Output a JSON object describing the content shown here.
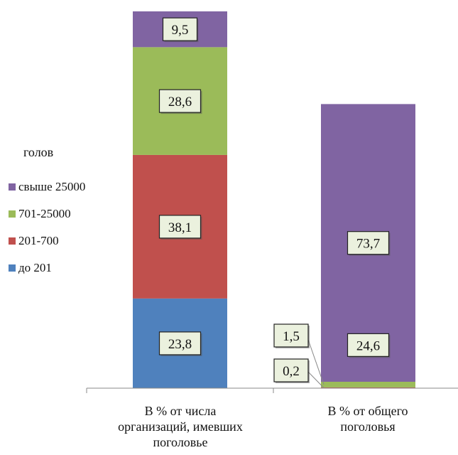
{
  "chart_data": {
    "type": "bar",
    "stacked": true,
    "categories": [
      "В % от числа организаций, имевших поголовье",
      "В % от общего поголовья"
    ],
    "category_lines": [
      [
        "В % от числа",
        "организаций, имевших",
        "поголовье"
      ],
      [
        "В % от общего",
        "поголовья"
      ]
    ],
    "legend_title": "голов",
    "legend_placement": "left",
    "grid": false,
    "ylim": [
      0,
      100
    ],
    "series": [
      {
        "name": "до 201",
        "color": "#4F81BD",
        "values": [
          23.8,
          0.0
        ],
        "labels": [
          "23,8",
          ""
        ]
      },
      {
        "name": "201-700",
        "color": "#C0504D",
        "values": [
          38.1,
          0.2
        ],
        "labels": [
          "38,1",
          "0,2"
        ]
      },
      {
        "name": "701-25000",
        "color": "#9BBB59",
        "values": [
          28.6,
          1.5
        ],
        "labels": [
          "28,6",
          "1,5"
        ]
      },
      {
        "name": "свыше 25000",
        "color": "#8064A2",
        "values": [
          9.5,
          73.7
        ],
        "labels": [
          "9,5",
          "73,7"
        ]
      }
    ],
    "extra_labels": [
      {
        "category": 1,
        "text": "24,6"
      }
    ]
  }
}
